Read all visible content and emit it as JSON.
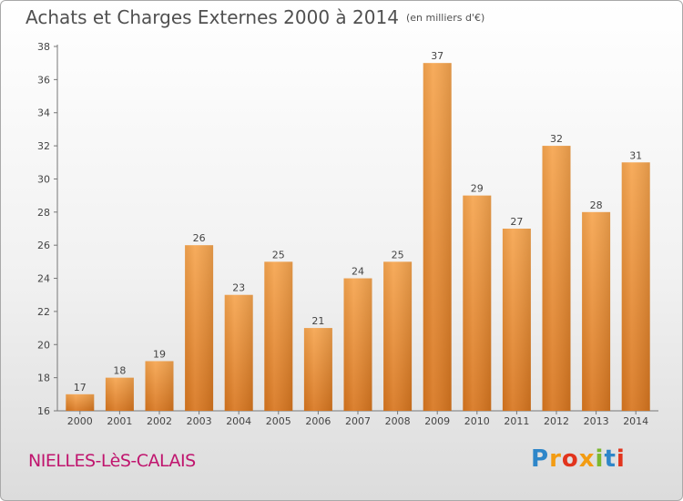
{
  "title": "Achats et Charges Externes 2000 à 2014",
  "unit": "(en milliers d'€)",
  "city": "NIELLES-LèS-CALAIS",
  "logo": {
    "text": "Proxiti",
    "letters": [
      {
        "ch": "P",
        "color": "#2e86c9"
      },
      {
        "ch": "r",
        "color": "#f39c12"
      },
      {
        "ch": "o",
        "color": "#e2341d"
      },
      {
        "ch": "x",
        "color": "#f39c12"
      },
      {
        "ch": "i",
        "color": "#7cb82f"
      },
      {
        "ch": "t",
        "color": "#2e86c9"
      },
      {
        "ch": "i",
        "color": "#e2341d"
      }
    ]
  },
  "chart_data": {
    "type": "bar",
    "title": "Achats et Charges Externes 2000 à 2014",
    "subtitle": "(en milliers d'€)",
    "categories": [
      "2000",
      "2001",
      "2002",
      "2003",
      "2004",
      "2005",
      "2006",
      "2007",
      "2008",
      "2009",
      "2010",
      "2011",
      "2012",
      "2013",
      "2014"
    ],
    "values": [
      17,
      18,
      19,
      26,
      23,
      25,
      21,
      24,
      25,
      37,
      29,
      27,
      32,
      28,
      31
    ],
    "ylim": [
      16,
      38
    ],
    "yticks": [
      16,
      18,
      20,
      22,
      24,
      26,
      28,
      30,
      32,
      34,
      36,
      38
    ],
    "grid": false,
    "bar_color_top": "#f6a54f",
    "bar_color_bottom": "#d8761f"
  }
}
